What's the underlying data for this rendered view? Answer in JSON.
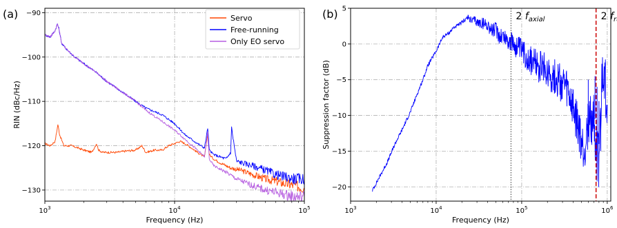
{
  "figure": {
    "panel_a_label": "(a)",
    "panel_b_label": "(b)"
  },
  "chart_data": [
    {
      "type": "line",
      "panel": "(a)",
      "xlabel": "Frequency (Hz)",
      "ylabel": "RIN (dBc/Hz)",
      "xscale": "log",
      "xlim": [
        1000,
        100000
      ],
      "ylim": [
        -132.5,
        -89
      ],
      "x_ticks": [
        1000,
        10000,
        100000
      ],
      "x_tick_labels": [
        [
          "10",
          "3"
        ],
        [
          "10",
          "4"
        ],
        [
          "10",
          "5"
        ]
      ],
      "y_ticks": [
        -90,
        -100,
        -110,
        -120,
        -130
      ],
      "y_tick_labels": [
        "−90",
        "−100",
        "−110",
        "−120",
        "−130"
      ],
      "grid": true,
      "legend_position": "top-right",
      "series": [
        {
          "name": "Servo",
          "color": "#ff4500",
          "x": [
            1000,
            1100,
            1200,
            1260,
            1300,
            1400,
            1600,
            1800,
            2000,
            2300,
            2500,
            2600,
            2800,
            3200,
            3600,
            4200,
            5000,
            5600,
            6000,
            7000,
            8000,
            9000,
            10000,
            11000,
            12000,
            13500,
            15000,
            17000,
            18000,
            18500,
            20000,
            23000,
            27000,
            32000,
            40000,
            50000,
            60000,
            70000,
            85000,
            100000
          ],
          "y": [
            -119.5,
            -120,
            -119,
            -115.2,
            -117.5,
            -120,
            -120,
            -120.5,
            -121,
            -121.5,
            -119.5,
            -121,
            -121.5,
            -121.5,
            -121.5,
            -121.2,
            -121,
            -120,
            -121.5,
            -121,
            -121,
            -120,
            -119.5,
            -119,
            -119.5,
            -120.5,
            -121.5,
            -122.5,
            -117.5,
            -122,
            -123,
            -124,
            -125,
            -125.5,
            -126.5,
            -127.5,
            -128,
            -128.5,
            -129,
            -129.5
          ]
        },
        {
          "name": "Free-running",
          "color": "#0000ff",
          "x": [
            1000,
            1100,
            1200,
            1250,
            1280,
            1350,
            1500,
            1700,
            2000,
            2500,
            3000,
            4000,
            5000,
            6000,
            8000,
            10000,
            12000,
            15000,
            17000,
            18000,
            18500,
            20000,
            25000,
            27000,
            27500,
            30000,
            40000,
            50000,
            60000,
            70000,
            85000,
            100000
          ],
          "y": [
            -95,
            -95.5,
            -94,
            -92.5,
            -93.5,
            -97,
            -98.5,
            -100,
            -101.5,
            -103.5,
            -105.5,
            -108,
            -110,
            -111.5,
            -113,
            -115,
            -117.5,
            -119.5,
            -120.5,
            -116,
            -121,
            -122,
            -123,
            -121.5,
            -116,
            -123.5,
            -124.5,
            -125.5,
            -126.5,
            -127,
            -127.5,
            -127.5
          ]
        },
        {
          "name": "Only EO servo",
          "color": "#b65de0",
          "x": [
            1000,
            1100,
            1200,
            1250,
            1280,
            1350,
            1500,
            1700,
            2000,
            2500,
            3000,
            4000,
            5000,
            6000,
            8000,
            10000,
            12000,
            15000,
            17000,
            18000,
            18500,
            20000,
            25000,
            30000,
            40000,
            50000,
            60000,
            70000,
            85000,
            100000
          ],
          "y": [
            -95,
            -95.5,
            -94,
            -92.5,
            -93.5,
            -97,
            -98.5,
            -100,
            -101.5,
            -103.5,
            -105.5,
            -108,
            -110,
            -112,
            -114.5,
            -116.5,
            -118.5,
            -121,
            -122.5,
            -117,
            -123,
            -124.5,
            -126,
            -127.5,
            -129,
            -130,
            -130.5,
            -131,
            -131.5,
            -131.5
          ]
        }
      ]
    },
    {
      "type": "line",
      "panel": "(b)",
      "xlabel": "Frequency (Hz)",
      "ylabel": "Suppression factor (dB)",
      "xscale": "log",
      "xlim": [
        1000,
        1100000
      ],
      "ylim": [
        -22,
        5
      ],
      "x_ticks": [
        1000,
        10000,
        100000,
        1000000
      ],
      "x_tick_labels": [
        [
          "10",
          "3"
        ],
        [
          "10",
          "4"
        ],
        [
          "10",
          "5"
        ],
        [
          "10",
          "6"
        ]
      ],
      "y_ticks": [
        5,
        0,
        -5,
        -10,
        -15,
        -20
      ],
      "y_tick_labels": [
        "5",
        "0",
        "−5",
        "−10",
        "−15",
        "−20"
      ],
      "grid": true,
      "series": [
        {
          "color": "#0000ff",
          "x": [
            1800,
            2200,
            2700,
            3300,
            4000,
            5000,
            6000,
            7000,
            8000,
            10000,
            12000,
            14000,
            16000,
            18000,
            20000,
            22000,
            24000,
            26000,
            28000,
            30000,
            35000,
            40000,
            45000,
            50000,
            55000,
            60000,
            70000,
            80000,
            90000,
            100000,
            120000,
            150000,
            200000,
            250000,
            300000,
            350000,
            400000,
            450000,
            480000,
            510000,
            540000,
            560000,
            580000,
            620000,
            660000,
            700000,
            730000,
            760000,
            800000,
            840000,
            880000,
            920000,
            960000,
            1000000
          ],
          "y": [
            -20.5,
            -18.5,
            -16.5,
            -14,
            -12,
            -9.5,
            -7,
            -5,
            -3,
            -1,
            1,
            1.5,
            2.3,
            2.6,
            3,
            3.5,
            3.7,
            3.2,
            3.4,
            3,
            2.9,
            2.7,
            1.9,
            2,
            1.2,
            1.2,
            0.5,
            0,
            -0.5,
            -1,
            -2,
            -3,
            -3.8,
            -4.8,
            -5.5,
            -7,
            -9.5,
            -11.5,
            -13,
            -14.5,
            -15,
            -13.5,
            -12,
            -10.5,
            -11,
            -10.2,
            -13.5,
            -15.5,
            -16.5,
            -10.5,
            -3.8,
            -4,
            -6.5,
            -8.5
          ]
        }
      ],
      "spikes_x": [
        600000,
        620000,
        650000,
        720000,
        760000,
        800000,
        840000
      ],
      "spike_top_y": [
        -5,
        -8,
        -10,
        -4.5,
        -6,
        -8,
        -11
      ],
      "spike_base_y": [
        -12,
        -11,
        -11,
        -10.5,
        -13,
        -14,
        -15
      ],
      "annotations": [
        {
          "text_main": "2",
          "text_f": "f",
          "text_sub": "axial",
          "x": 75000,
          "line_style": "dotted",
          "line_color": "#555555"
        },
        {
          "text_main": "2",
          "text_f": "f",
          "text_sub": "radial",
          "x": 740000,
          "line_style": "dashed",
          "line_color": "#cc0000"
        }
      ]
    }
  ]
}
